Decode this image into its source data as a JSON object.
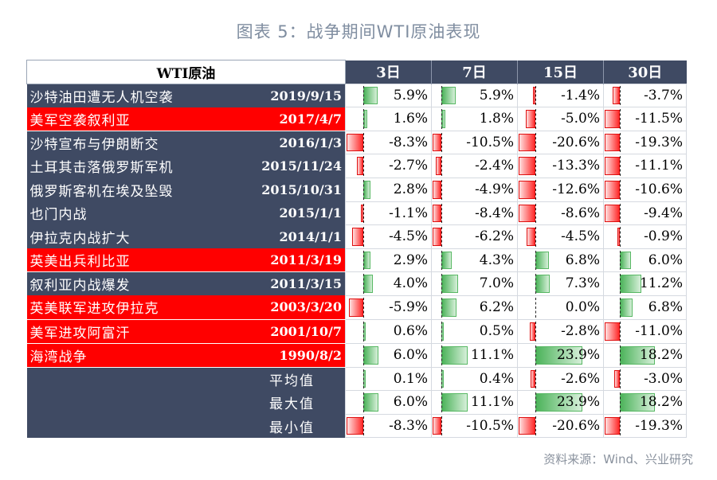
{
  "title": "图表 5：战争期间WTI原油表现",
  "source": "资料来源：Wind、兴业研究",
  "header": {
    "name": "WTI原油",
    "periods": [
      "3日",
      "7日",
      "15日",
      "30日"
    ]
  },
  "colors": {
    "dark": "#3f4a63",
    "highlight": "#ff0000",
    "positive": "#4cb35a",
    "negative": "#ff0000"
  },
  "rows": [
    {
      "event": "沙特油田遭无人机空袭",
      "date": "2019/9/15",
      "highlight": false,
      "values": [
        "5.9%",
        "5.9%",
        "-1.4%",
        "-3.7%"
      ]
    },
    {
      "event": "美军空袭叙利亚",
      "date": "2017/4/7",
      "highlight": true,
      "values": [
        "1.6%",
        "1.8%",
        "-5.0%",
        "-11.5%"
      ]
    },
    {
      "event": "沙特宣布与伊朗断交",
      "date": "2016/1/3",
      "highlight": false,
      "values": [
        "-8.3%",
        "-10.5%",
        "-20.6%",
        "-19.3%"
      ]
    },
    {
      "event": "土耳其击落俄罗斯军机",
      "date": "2015/11/24",
      "highlight": false,
      "values": [
        "-2.7%",
        "-2.4%",
        "-13.3%",
        "-11.1%"
      ]
    },
    {
      "event": "俄罗斯客机在埃及坠毁",
      "date": "2015/10/31",
      "highlight": false,
      "values": [
        "2.8%",
        "-4.9%",
        "-12.6%",
        "-10.6%"
      ]
    },
    {
      "event": "也门内战",
      "date": "2015/1/1",
      "highlight": false,
      "values": [
        "-1.1%",
        "-8.4%",
        "-8.6%",
        "-9.4%"
      ]
    },
    {
      "event": "伊拉克内战扩大",
      "date": "2014/1/1",
      "highlight": false,
      "values": [
        "-4.5%",
        "-6.2%",
        "-4.5%",
        "-0.9%"
      ]
    },
    {
      "event": "英美出兵利比亚",
      "date": "2011/3/19",
      "highlight": true,
      "values": [
        "2.9%",
        "4.3%",
        "6.8%",
        "6.0%"
      ]
    },
    {
      "event": "叙利亚内战爆发",
      "date": "2011/3/15",
      "highlight": false,
      "values": [
        "4.0%",
        "7.0%",
        "7.3%",
        "11.2%"
      ]
    },
    {
      "event": "英美联军进攻伊拉克",
      "date": "2003/3/20",
      "highlight": true,
      "values": [
        "-5.9%",
        "6.2%",
        "0.0%",
        "6.8%"
      ]
    },
    {
      "event": "美军进攻阿富汗",
      "date": "2001/10/7",
      "highlight": true,
      "values": [
        "0.6%",
        "0.5%",
        "-2.8%",
        "-11.0%"
      ]
    },
    {
      "event": "海湾战争",
      "date": "1990/8/2",
      "highlight": true,
      "values": [
        "6.0%",
        "11.1%",
        "23.9%",
        "18.2%"
      ]
    }
  ],
  "stats": [
    {
      "label": "平均值",
      "values": [
        "0.1%",
        "0.4%",
        "-2.6%",
        "-3.0%"
      ]
    },
    {
      "label": "最大值",
      "values": [
        "6.0%",
        "11.1%",
        "23.9%",
        "18.2%"
      ]
    },
    {
      "label": "最小值",
      "values": [
        "-8.3%",
        "-10.5%",
        "-20.6%",
        "-19.3%"
      ]
    }
  ]
}
